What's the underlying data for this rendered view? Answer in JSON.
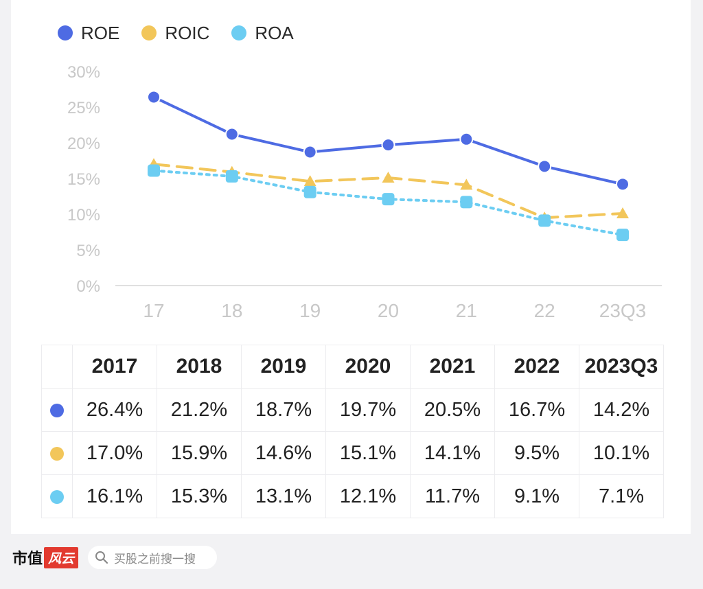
{
  "colors": {
    "roe": "#4e6be3",
    "roic": "#f2c65a",
    "roa": "#6ccdf2",
    "axis": "#e0e0e0",
    "tick": "#c8c8c8"
  },
  "chart_data": {
    "type": "line",
    "categories": [
      "17",
      "18",
      "19",
      "20",
      "21",
      "22",
      "23Q3"
    ],
    "ylim": [
      0,
      30
    ],
    "yticks": [
      "0%",
      "5%",
      "10%",
      "15%",
      "20%",
      "25%",
      "30%"
    ],
    "ytick_values": [
      0,
      5,
      10,
      15,
      20,
      25,
      30
    ],
    "legend_position": "top-left",
    "series": [
      {
        "name": "ROE",
        "values": [
          26.4,
          21.2,
          18.7,
          19.7,
          20.5,
          16.7,
          14.2
        ]
      },
      {
        "name": "ROIC",
        "values": [
          17.0,
          15.9,
          14.6,
          15.1,
          14.1,
          9.5,
          10.1
        ]
      },
      {
        "name": "ROA",
        "values": [
          16.1,
          15.3,
          13.1,
          12.1,
          11.7,
          9.1,
          7.1
        ]
      }
    ]
  },
  "legend": {
    "roe": "ROE",
    "roic": "ROIC",
    "roa": "ROA"
  },
  "table": {
    "headers": [
      "2017",
      "2018",
      "2019",
      "2020",
      "2021",
      "2022",
      "2023Q3"
    ],
    "rows": [
      [
        "26.4%",
        "21.2%",
        "18.7%",
        "19.7%",
        "20.5%",
        "16.7%",
        "14.2%"
      ],
      [
        "17.0%",
        "15.9%",
        "14.6%",
        "15.1%",
        "14.1%",
        "9.5%",
        "10.1%"
      ],
      [
        "16.1%",
        "15.3%",
        "13.1%",
        "12.1%",
        "11.7%",
        "9.1%",
        "7.1%"
      ]
    ]
  },
  "footer": {
    "brand_a": "市值",
    "brand_b": "风云",
    "search_placeholder": "买股之前搜一搜"
  }
}
